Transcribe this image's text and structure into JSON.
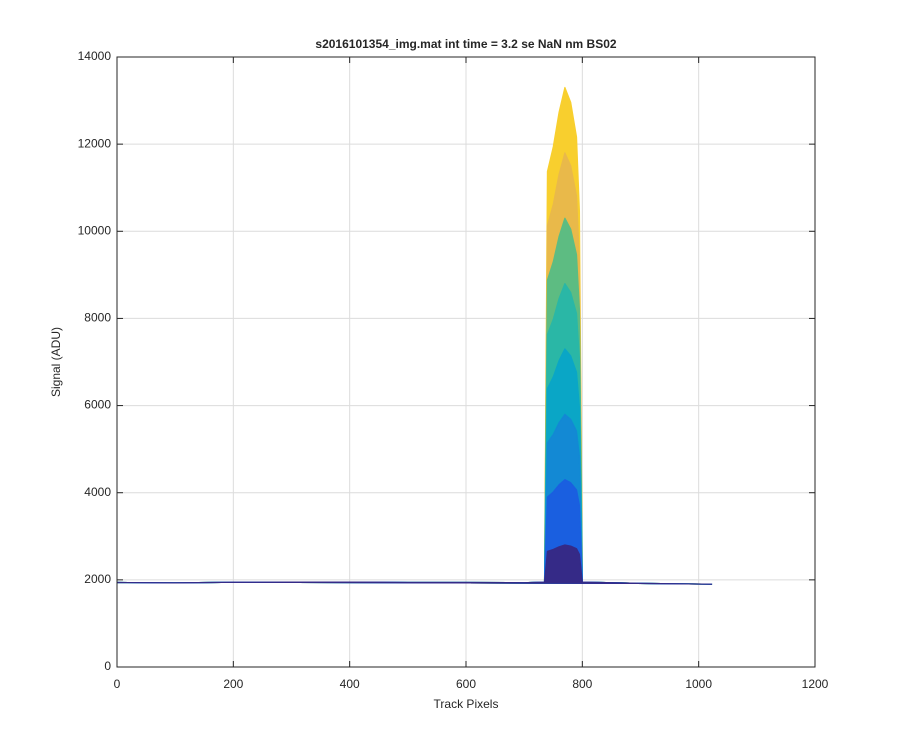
{
  "chart_data": {
    "type": "line",
    "title": "s2016101354_img.mat int time = 3.2 se  NaN nm BS02",
    "x_label": "Track Pixels",
    "y_label": "Signal (ADU)",
    "x": [
      0,
      100,
      200,
      300,
      400,
      500,
      600,
      700,
      735,
      740,
      750,
      760,
      770,
      780,
      790,
      795,
      800,
      900,
      1023
    ],
    "series": [
      {
        "color": "#f8cf2e",
        "values": [
          1940,
          1930,
          1945,
          1950,
          1950,
          1940,
          1940,
          1935,
          1950,
          11371,
          11938,
          12733,
          13300,
          12960,
          12165,
          10463,
          1950,
          1920,
          1900
        ]
      },
      {
        "color": "#e9b94a",
        "values": [
          1940,
          1930,
          1945,
          1950,
          1950,
          1940,
          1940,
          1935,
          1950,
          10126,
          10618,
          11308,
          11800,
          11505,
          10815,
          9338,
          1950,
          1920,
          1900
        ]
      },
      {
        "color": "#5dbc82",
        "values": [
          1940,
          1930,
          1945,
          1950,
          1950,
          1940,
          1940,
          1935,
          1950,
          8881,
          9298,
          9883,
          10300,
          10050,
          9465,
          8213,
          1950,
          1920,
          1900
        ]
      },
      {
        "color": "#2ab7a6",
        "values": [
          1940,
          1930,
          1945,
          1950,
          1950,
          1940,
          1940,
          1935,
          1950,
          7636,
          7978,
          8458,
          8800,
          8595,
          8115,
          7088,
          1950,
          1920,
          1900
        ]
      },
      {
        "color": "#0aa6c6",
        "values": [
          1940,
          1930,
          1945,
          1950,
          1950,
          1940,
          1940,
          1935,
          1950,
          6391,
          6658,
          7033,
          7300,
          7140,
          6765,
          5963,
          1950,
          1920,
          1900
        ]
      },
      {
        "color": "#1389d4",
        "values": [
          1940,
          1930,
          1945,
          1950,
          1950,
          1940,
          1940,
          1935,
          1950,
          5146,
          5338,
          5608,
          5800,
          5685,
          5415,
          4838,
          1950,
          1920,
          1900
        ]
      },
      {
        "color": "#1a5fe0",
        "values": [
          1940,
          1930,
          1945,
          1950,
          1950,
          1940,
          1940,
          1935,
          1950,
          3901,
          4018,
          4183,
          4300,
          4230,
          4065,
          3713,
          1950,
          1920,
          1900
        ]
      },
      {
        "color": "#352a87",
        "values": [
          1940,
          1930,
          1945,
          1950,
          1950,
          1940,
          1940,
          1935,
          1950,
          2656,
          2698,
          2758,
          2800,
          2775,
          2715,
          2588,
          1950,
          1920,
          1900
        ]
      }
    ],
    "xlim": [
      0,
      1200
    ],
    "xticks": [
      0,
      200,
      400,
      600,
      800,
      1000,
      1200
    ],
    "ylim": [
      0,
      14000
    ],
    "yticks": [
      0,
      2000,
      4000,
      6000,
      8000,
      10000,
      12000,
      14000
    ],
    "grid": true
  }
}
